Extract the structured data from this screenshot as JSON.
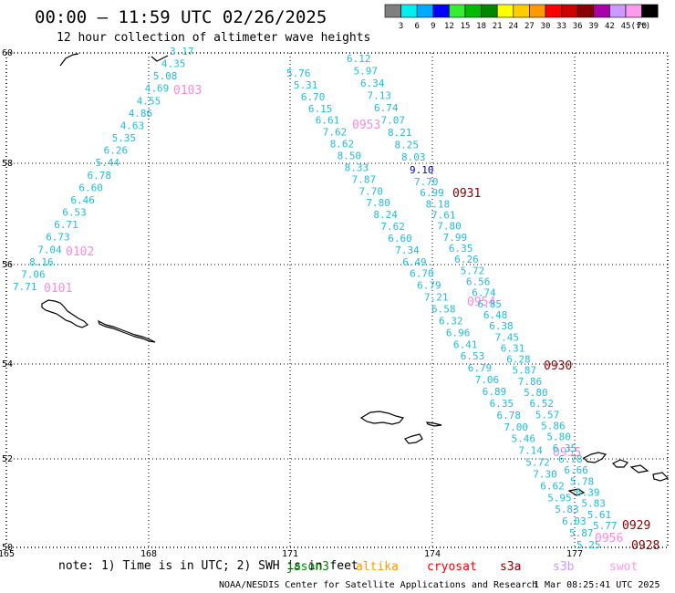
{
  "header": {
    "title": "00:00 – 11:59 UTC 02/26/2025",
    "subtitle": "12 hour collection of altimeter wave heights"
  },
  "legend": {
    "unit": "(ft)",
    "bins": [
      {
        "label": "3",
        "color": "#7f7f7f"
      },
      {
        "label": "6",
        "color": "#00eeee"
      },
      {
        "label": "9",
        "color": "#00aaff"
      },
      {
        "label": "12",
        "color": "#0000ff"
      },
      {
        "label": "15",
        "color": "#33ee33"
      },
      {
        "label": "18",
        "color": "#00bb00"
      },
      {
        "label": "21",
        "color": "#008800"
      },
      {
        "label": "24",
        "color": "#ffff00"
      },
      {
        "label": "27",
        "color": "#ffcc00"
      },
      {
        "label": "30",
        "color": "#ff9900"
      },
      {
        "label": "33",
        "color": "#ff0000"
      },
      {
        "label": "36",
        "color": "#cc0000"
      },
      {
        "label": "39",
        "color": "#880000"
      },
      {
        "label": "42",
        "color": "#aa00aa"
      },
      {
        "label": "45",
        "color": "#cc99ff"
      },
      {
        "label": "70",
        "color": "#ff99ee"
      },
      {
        "label": "",
        "color": "#000000"
      }
    ]
  },
  "axes": {
    "lat_ticks": [
      "60",
      "58",
      "56",
      "54",
      "52",
      "50"
    ],
    "lon_ticks": [
      "165",
      "168",
      "171",
      "174",
      "177"
    ]
  },
  "tracks": [
    {
      "color": "#22bbdd",
      "labels": [
        "3.17",
        "4.35",
        "5.08",
        "4.69",
        "4.55",
        "4.86",
        "4.63",
        "5.35",
        "6.26",
        "5.44",
        "6.78",
        "6.60",
        "6.46",
        "6.53",
        "6.71",
        "6.73",
        "7.04",
        "8.16",
        "7.06",
        "7.71"
      ],
      "times": [
        {
          "text": "0103",
          "color": "#ff88dd"
        },
        {
          "text": "0102",
          "color": "#ff88dd"
        },
        {
          "text": "0101",
          "color": "#ff88dd"
        }
      ]
    },
    {
      "color": "#22bbdd",
      "labels": [
        "5.76",
        "5.31",
        "6.70",
        "6.15",
        "6.61",
        "7.62",
        "8.62",
        "8.50",
        "8.33",
        "7.87",
        "7.70",
        "7.80",
        "8.24",
        "7.62",
        "6.60",
        "7.34",
        "6.49",
        "6.70",
        "6.79",
        "7.21",
        "6.58",
        "6.32",
        "6.96",
        "6.41",
        "6.53",
        "6.79",
        "7.06",
        "6.89",
        "6.35",
        "6.78",
        "7.00",
        "5.46",
        "7.14",
        "5.72",
        "7.30",
        "6.62",
        "5.95",
        "5.83",
        "6.03",
        "5.87",
        "5.25"
      ],
      "times": [
        {
          "text": "0953",
          "color": "#ff88dd"
        },
        {
          "text": "0954",
          "color": "#ff88dd"
        },
        {
          "text": "0955",
          "color": "#ff88dd"
        },
        {
          "text": "0956",
          "color": "#ff88dd"
        }
      ]
    },
    {
      "color": "#22bbdd",
      "highlight": {
        "text": "9.10",
        "color": "#0000cc"
      },
      "labels": [
        "6.12",
        "5.97",
        "6.34",
        "7.13",
        "6.74",
        "7.07",
        "8.21",
        "8.25",
        "8.03",
        "7.70",
        "6.99",
        "8.18",
        "7.61",
        "7.80",
        "7.99",
        "6.35",
        "6.26",
        "5.72",
        "6.56",
        "6.74",
        "6.85",
        "6.48",
        "6.38",
        "7.45",
        "6.31",
        "6.28",
        "5.87",
        "7.86",
        "5.80",
        "6.52",
        "5.57",
        "5.86",
        "5.80",
        "6.35",
        "6.78",
        "6.66",
        "5.78",
        "6.39",
        "5.83",
        "5.61",
        "5.77"
      ],
      "times": [
        {
          "text": "0931",
          "color": "#880000"
        },
        {
          "text": "0930",
          "color": "#880000"
        },
        {
          "text": "0929",
          "color": "#880000"
        },
        {
          "text": "0928",
          "color": "#880000"
        }
      ]
    }
  ],
  "footer": {
    "note": "note:  1) Time is in UTC; 2) SWH is in feet",
    "satellites": [
      {
        "name": "jason3",
        "color": "#008800"
      },
      {
        "name": "altika",
        "color": "#ff9900"
      },
      {
        "name": "cryosat",
        "color": "#ff0000"
      },
      {
        "name": "s3a",
        "color": "#880000"
      },
      {
        "name": "s3b",
        "color": "#cc99ff"
      },
      {
        "name": "swot",
        "color": "#ff99ee"
      }
    ],
    "credit": "NOAA/NESDIS Center for Satellite Applications and Research",
    "generated": "1 Mar 08:25:41 UTC 2025"
  }
}
